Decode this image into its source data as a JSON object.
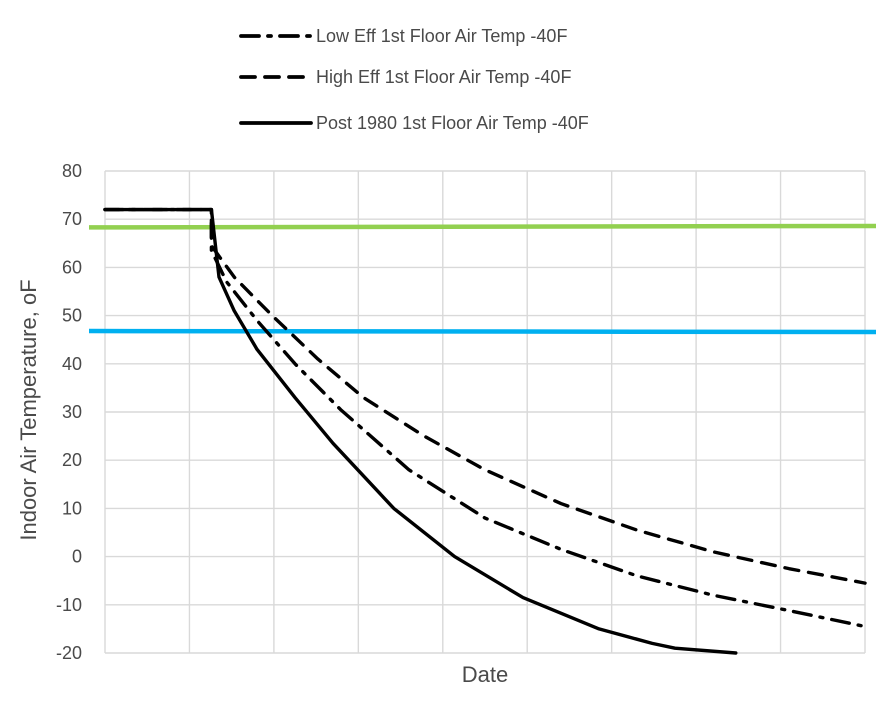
{
  "chart_data": {
    "type": "line",
    "title": "",
    "xlabel": "Date",
    "ylabel": "Indoor Air Temperature, oF",
    "ylim": [
      -20,
      80
    ],
    "y_ticks": [
      80,
      70,
      60,
      50,
      40,
      30,
      20,
      10,
      0,
      -10,
      -20
    ],
    "grid": true,
    "legend_position": "top",
    "reference_lines": [
      {
        "y": [
          68.3,
          68.6
        ],
        "color": "#92d050"
      },
      {
        "y": [
          46.8,
          46.6
        ],
        "color": "#00b0f0"
      }
    ],
    "series": [
      {
        "name": "Low Eff 1st Floor Air Temp -40F",
        "line_style": "dash-dot",
        "color": "#000000",
        "x": [
          0.0,
          0.14,
          0.14,
          0.16,
          0.2,
          0.25,
          0.31,
          0.4,
          0.5,
          0.6,
          0.7,
          0.8,
          0.9,
          1.0
        ],
        "y": [
          72.0,
          72.0,
          63.5,
          57.0,
          49.0,
          40.0,
          30.5,
          18.0,
          8.0,
          1.5,
          -4.0,
          -8.0,
          -11.2,
          -14.5
        ]
      },
      {
        "name": "High Eff 1st Floor Air Temp -40F",
        "line_style": "dashed",
        "color": "#000000",
        "x": [
          0.0,
          0.14,
          0.14,
          0.17,
          0.22,
          0.28,
          0.34,
          0.42,
          0.5,
          0.6,
          0.7,
          0.8,
          0.9,
          1.0
        ],
        "y": [
          72.0,
          72.0,
          64.5,
          58.0,
          50.0,
          41.0,
          33.0,
          25.0,
          18.0,
          11.0,
          5.5,
          1.0,
          -2.5,
          -5.5
        ]
      },
      {
        "name": "Post 1980 1st Floor Air Temp -40F",
        "line_style": "solid",
        "color": "#000000",
        "x": [
          0.0,
          0.14,
          0.15,
          0.17,
          0.2,
          0.25,
          0.3,
          0.38,
          0.46,
          0.55,
          0.65,
          0.72,
          0.75,
          0.83
        ],
        "y": [
          72.0,
          72.0,
          58.0,
          51.0,
          43.0,
          33.0,
          23.5,
          10.0,
          0.0,
          -8.5,
          -15.0,
          -18.0,
          -19.0,
          -20.0
        ]
      }
    ]
  }
}
